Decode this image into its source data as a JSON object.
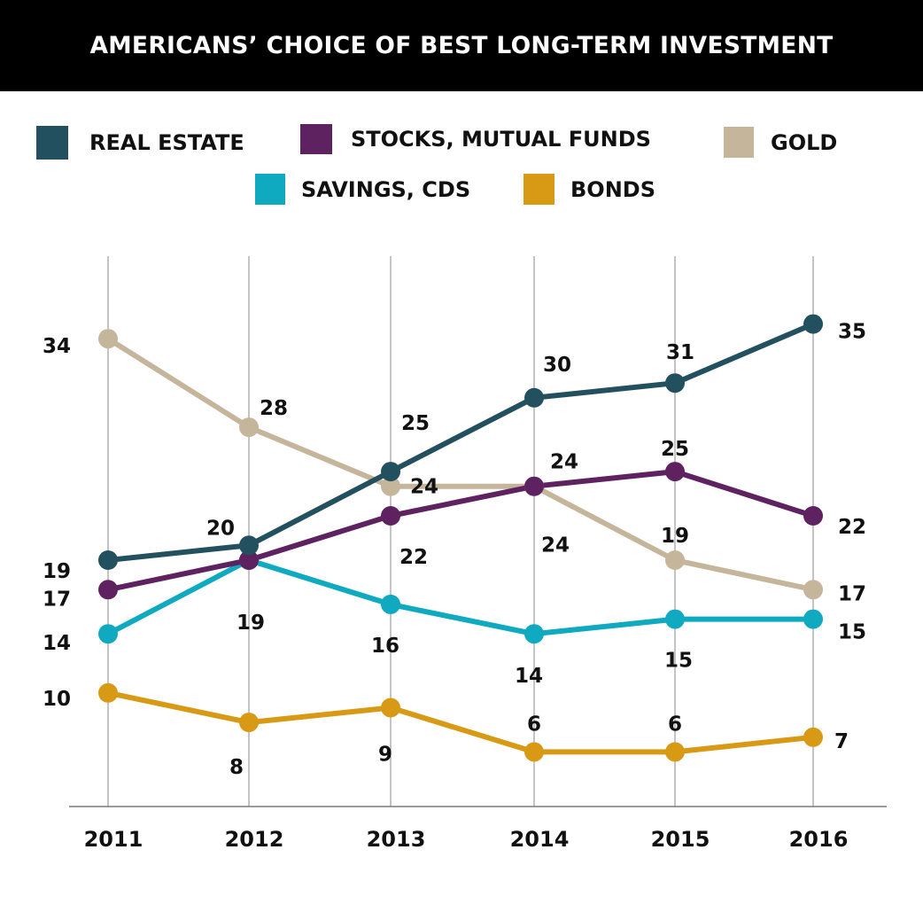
{
  "chart_data": {
    "type": "line",
    "title": "AMERICANS’ CHOICE OF BEST LONG-TERM INVESTMENT",
    "xlabel": "",
    "ylabel": "",
    "x": [
      "2011",
      "2012",
      "2013",
      "2014",
      "2015",
      "2016"
    ],
    "ylim": [
      2.3,
      39.6
    ],
    "grid": "vertical lines at each year",
    "legend": {
      "placement": "top-center",
      "entries": [
        "REAL ESTATE",
        "STOCKS, MUTUAL FUNDS",
        "GOLD",
        "SAVINGS, CDS",
        "BONDS"
      ]
    },
    "series": [
      {
        "name": "REAL ESTATE",
        "color": "#22505E",
        "values": [
          19,
          20,
          25,
          30,
          31,
          35
        ]
      },
      {
        "name": "STOCKS, MUTUAL FUNDS",
        "color": "#5E2260",
        "values": [
          17,
          19,
          22,
          24,
          25,
          22
        ]
      },
      {
        "name": "GOLD",
        "color": "#C4B59B",
        "values": [
          34,
          28,
          24,
          24,
          19,
          17
        ]
      },
      {
        "name": "SAVINGS, CDS",
        "color": "#10AAC0",
        "values": [
          14,
          19,
          16,
          14,
          15,
          15
        ]
      },
      {
        "name": "BONDS",
        "color": "#D89A14",
        "values": [
          10,
          8,
          9,
          6,
          6,
          7
        ]
      }
    ]
  }
}
